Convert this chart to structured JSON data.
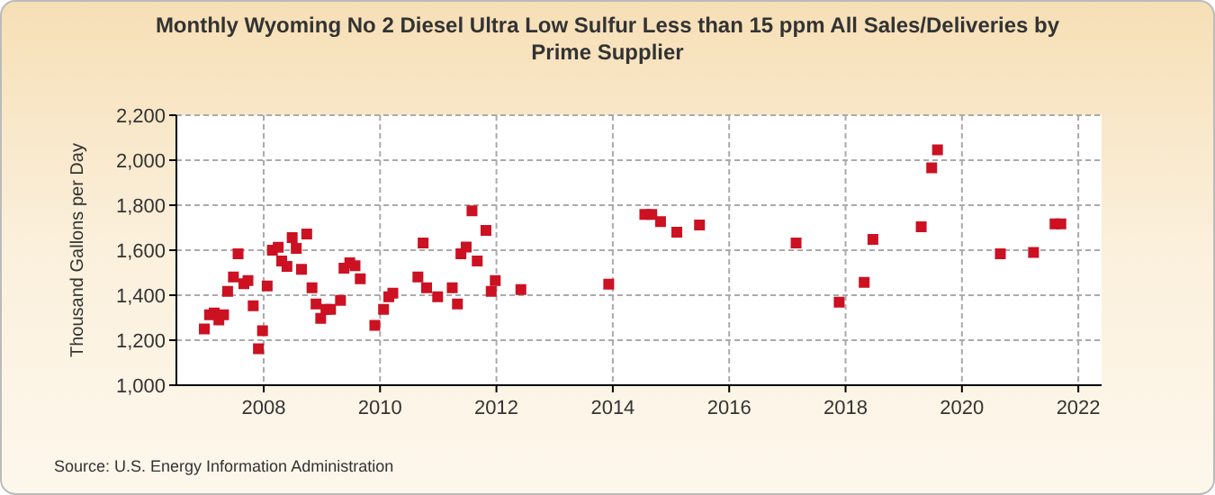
{
  "chart_data": {
    "type": "scatter",
    "title": "Monthly Wyoming No 2 Diesel Ultra Low Sulfur Less than 15 ppm All Sales/Deliveries by Prime Supplier",
    "ylabel": "Thousand Gallons per Day",
    "annotations": [
      "Source: U.S. Energy Information Administration"
    ],
    "x": [
      2006.98,
      2007.07,
      2007.15,
      2007.23,
      2007.31,
      2007.38,
      2007.48,
      2007.56,
      2007.66,
      2007.73,
      2007.82,
      2007.91,
      2007.98,
      2008.06,
      2008.15,
      2008.25,
      2008.31,
      2008.4,
      2008.49,
      2008.56,
      2008.65,
      2008.74,
      2008.83,
      2008.9,
      2008.98,
      2009.07,
      2009.15,
      2009.32,
      2009.38,
      2009.48,
      2009.57,
      2009.66,
      2009.91,
      2010.06,
      2010.15,
      2010.22,
      2010.65,
      2010.74,
      2010.8,
      2010.99,
      2011.24,
      2011.33,
      2011.39,
      2011.48,
      2011.58,
      2011.67,
      2011.82,
      2011.91,
      2011.98,
      2012.42,
      2013.93,
      2014.55,
      2014.67,
      2014.82,
      2015.1,
      2015.49,
      2017.15,
      2017.89,
      2018.32,
      2018.47,
      2019.3,
      2019.48,
      2019.58,
      2020.66,
      2021.23,
      2021.6,
      2021.7
    ],
    "series": [
      {
        "color": "#cc1122",
        "values": [
          1250,
          1313,
          1321,
          1290,
          1313,
          1417,
          1481,
          1584,
          1451,
          1465,
          1353,
          1162,
          1242,
          1441,
          1600,
          1613,
          1552,
          1528,
          1656,
          1608,
          1515,
          1672,
          1433,
          1361,
          1297,
          1337,
          1337,
          1377,
          1520,
          1544,
          1531,
          1473,
          1266,
          1337,
          1393,
          1409,
          1481,
          1632,
          1433,
          1393,
          1433,
          1361,
          1584,
          1614,
          1775,
          1552,
          1688,
          1417,
          1465,
          1425,
          1449,
          1759,
          1759,
          1727,
          1680,
          1712,
          1632,
          1369,
          1457,
          1648,
          1704,
          1966,
          2046,
          1584,
          1590,
          1717,
          1717
        ]
      }
    ],
    "xlim": [
      2006.5,
      2022.4
    ],
    "xticks": [
      2008,
      2010,
      2012,
      2014,
      2016,
      2018,
      2020,
      2022
    ],
    "ylim": [
      1000,
      2200
    ],
    "yticks": [
      {
        "value": 1000,
        "label": "1,000"
      },
      {
        "value": 1200,
        "label": "1,200"
      },
      {
        "value": 1400,
        "label": "1,400"
      },
      {
        "value": 1600,
        "label": "1,600"
      },
      {
        "value": 1800,
        "label": "1,800"
      },
      {
        "value": 2000,
        "label": "2,000"
      },
      {
        "value": 2200,
        "label": "2,200"
      }
    ],
    "grid": true,
    "marker": "square"
  }
}
